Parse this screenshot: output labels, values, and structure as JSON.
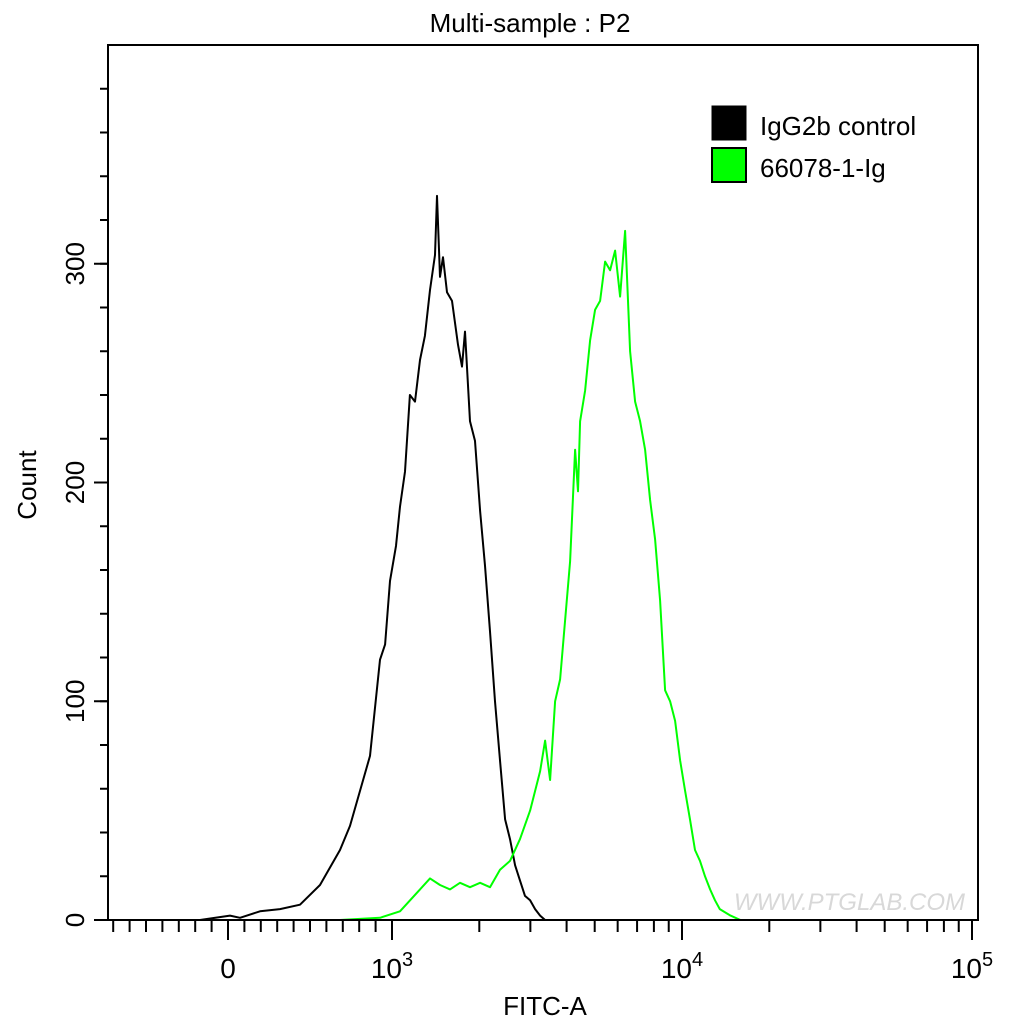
{
  "chart_data": {
    "type": "line",
    "title": "Multi-sample : P2",
    "xlabel": "FITC-A",
    "ylabel": "Count",
    "x_scale": "biexponential",
    "xlim": [
      -730,
      100000
    ],
    "ylim": [
      0,
      400
    ],
    "x_tick_labels": [
      {
        "value": 0,
        "base": "0",
        "exp": ""
      },
      {
        "value": 1000,
        "base": "10",
        "exp": "3"
      },
      {
        "value": 10000,
        "base": "10",
        "exp": "4"
      },
      {
        "value": 100000,
        "base": "10",
        "exp": "5"
      }
    ],
    "y_ticks": [
      0,
      100,
      200,
      300
    ],
    "grid": false,
    "legend_position": "top-right",
    "watermark": "WWW.PTGLAB.COM",
    "series": [
      {
        "name": "IgG2b control",
        "color": "#000000",
        "x": [
          -171,
          12,
          73,
          195,
          317,
          439,
          561,
          683,
          744,
          805,
          866,
          927,
          958,
          988,
          1032,
          1066,
          1109,
          1153,
          1200,
          1249,
          1299,
          1352,
          1407,
          1430,
          1464,
          1499,
          1547,
          1610,
          1689,
          1743,
          1786,
          1858,
          1933,
          2012,
          2093,
          2178,
          2266,
          2358,
          2454,
          2553,
          2657,
          2764,
          2876,
          2993,
          3114,
          3240,
          3372
        ],
        "y": [
          0,
          2,
          1,
          4,
          5,
          7,
          16,
          32,
          43,
          59,
          75,
          119,
          126,
          155,
          171,
          189,
          205,
          240,
          237,
          256,
          267,
          288,
          304,
          331,
          294,
          303,
          287,
          283,
          263,
          253,
          269,
          228,
          219,
          187,
          162,
          132,
          100,
          73,
          46,
          37,
          25,
          18,
          11,
          9,
          5,
          2,
          0
        ]
      },
      {
        "name": "66078-1-Ig",
        "color": "#00ff00",
        "x": [
          683,
          927,
          1066,
          1249,
          1352,
          1464,
          1585,
          1716,
          1858,
          2012,
          2178,
          2358,
          2553,
          2764,
          2993,
          3240,
          3372,
          3508,
          3650,
          3799,
          3952,
          4112,
          4279,
          4380,
          4452,
          4633,
          4820,
          5016,
          5219,
          5430,
          5650,
          5879,
          6117,
          6365,
          6623,
          6891,
          7170,
          7461,
          7763,
          8077,
          8405,
          8745,
          9099,
          9468,
          9852,
          10250,
          10660,
          11090,
          11540,
          12000,
          12500,
          13000,
          13500,
          14700,
          15900
        ],
        "y": [
          0,
          1,
          4,
          14,
          19,
          16,
          14,
          17,
          15,
          17,
          15,
          23,
          27,
          37,
          50,
          68,
          82,
          64,
          100,
          110,
          137,
          164,
          215,
          196,
          228,
          242,
          265,
          279,
          283,
          301,
          297,
          306,
          285,
          315,
          260,
          237,
          228,
          215,
          192,
          174,
          146,
          105,
          100,
          91,
          73,
          59,
          46,
          32,
          27,
          20,
          14,
          9,
          5,
          2,
          0
        ]
      }
    ]
  }
}
